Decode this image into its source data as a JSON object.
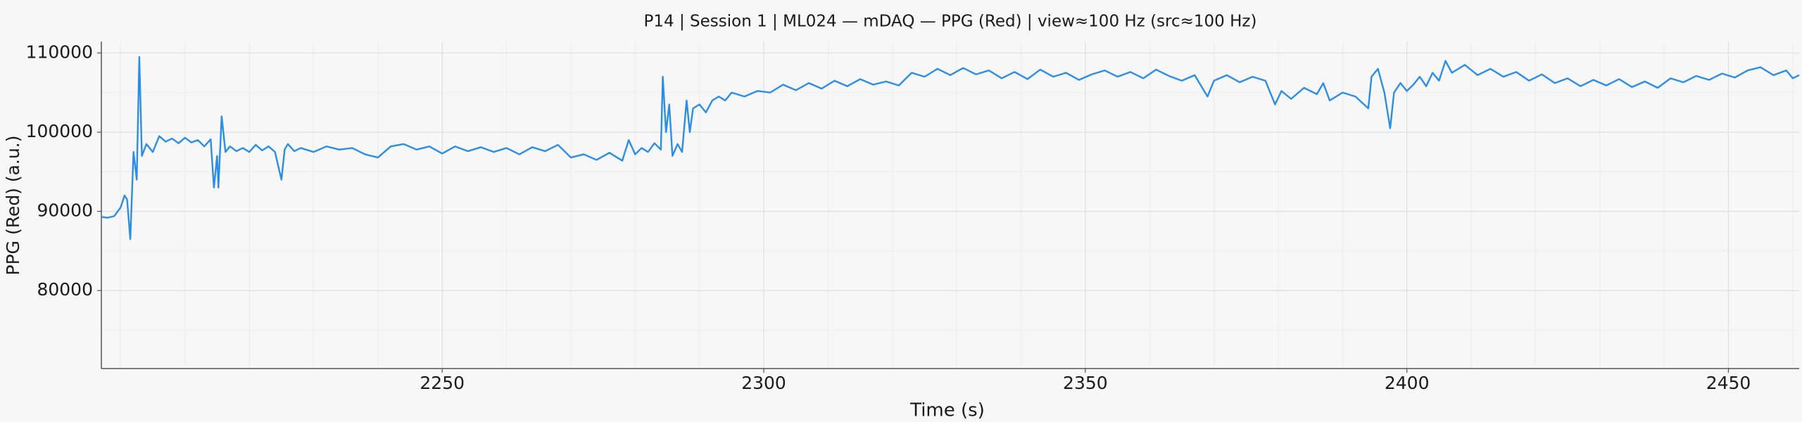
{
  "chart_data": {
    "type": "line",
    "title": "P14 | Session 1 | ML024 — mDAQ — PPG (Red) | view≈100 Hz (src≈100 Hz)",
    "x_label": "Time (s)",
    "y_label": "PPG (Red) (a.u.)",
    "x": [
      2197,
      2198,
      2199,
      2200,
      2200.6,
      2201,
      2201.5,
      2202,
      2202.5,
      2202.9,
      2203.3,
      2204,
      2205,
      2206,
      2207,
      2208,
      2209,
      2210,
      2211,
      2212,
      2213,
      2214,
      2214.5,
      2215,
      2215.2,
      2215.7,
      2216.3,
      2217,
      2218,
      2219,
      2220,
      2221,
      2222,
      2223,
      2224,
      2225,
      2225.5,
      2226,
      2227,
      2228,
      2230,
      2232,
      2234,
      2236,
      2238,
      2240,
      2242,
      2244,
      2246,
      2248,
      2250,
      2252,
      2254,
      2256,
      2258,
      2260,
      2262,
      2264,
      2266,
      2268,
      2270,
      2272,
      2274,
      2276,
      2278,
      2279,
      2280,
      2281,
      2282,
      2283,
      2284,
      2284.3,
      2284.8,
      2285.3,
      2285.8,
      2286.6,
      2287.3,
      2288,
      2288.5,
      2289,
      2290,
      2291,
      2292,
      2293,
      2294,
      2295,
      2297,
      2299,
      2301,
      2303,
      2305,
      2307,
      2309,
      2311,
      2313,
      2315,
      2317,
      2319,
      2321,
      2323,
      2325,
      2327,
      2329,
      2331,
      2333,
      2335,
      2337,
      2339,
      2341,
      2343,
      2345,
      2347,
      2349,
      2351,
      2353,
      2355,
      2357,
      2359,
      2361,
      2363,
      2365,
      2367,
      2369,
      2370,
      2372,
      2374,
      2376,
      2378,
      2379.5,
      2380.5,
      2382,
      2384,
      2386,
      2387,
      2388,
      2390,
      2392,
      2394,
      2394.5,
      2395.5,
      2396.5,
      2397.4,
      2398,
      2399,
      2400,
      2401,
      2402,
      2403,
      2404,
      2405,
      2406,
      2407,
      2409,
      2411,
      2413,
      2415,
      2417,
      2419,
      2421,
      2423,
      2425,
      2427,
      2429,
      2431,
      2433,
      2435,
      2437,
      2439,
      2441,
      2443,
      2445,
      2447,
      2449,
      2451,
      2453,
      2455,
      2457,
      2459,
      2460,
      2461
    ],
    "series": [
      {
        "name": "PPG (Red)",
        "color": "#2a8ee8",
        "values": [
          89300,
          89200,
          89400,
          90500,
          92000,
          91500,
          86500,
          97500,
          94000,
          109500,
          97000,
          98500,
          97500,
          99500,
          98800,
          99200,
          98600,
          99300,
          98700,
          99000,
          98200,
          99100,
          93000,
          97000,
          93000,
          102000,
          97500,
          98200,
          97600,
          98000,
          97500,
          98400,
          97700,
          98200,
          97500,
          94000,
          97800,
          98500,
          97600,
          98000,
          97500,
          98200,
          97800,
          98000,
          97200,
          96800,
          98200,
          98500,
          97800,
          98200,
          97300,
          98200,
          97600,
          98100,
          97500,
          98000,
          97200,
          98100,
          97600,
          98400,
          96800,
          97200,
          96500,
          97400,
          96400,
          99000,
          97200,
          98000,
          97500,
          98600,
          97800,
          107000,
          100000,
          103500,
          97000,
          98500,
          97500,
          104000,
          100000,
          103000,
          103500,
          102500,
          104000,
          104500,
          104000,
          105000,
          104500,
          105200,
          105000,
          106000,
          105300,
          106200,
          105500,
          106500,
          105800,
          106700,
          106000,
          106400,
          105900,
          107500,
          107000,
          108000,
          107200,
          108100,
          107300,
          107800,
          106800,
          107600,
          106700,
          107900,
          107000,
          107500,
          106600,
          107300,
          107800,
          107000,
          107600,
          106800,
          107900,
          107100,
          106500,
          107200,
          104500,
          106500,
          107200,
          106300,
          107000,
          106500,
          103500,
          105200,
          104200,
          105600,
          104800,
          106200,
          104000,
          105000,
          104500,
          103000,
          107000,
          108000,
          105000,
          100500,
          105000,
          106200,
          105200,
          106000,
          107000,
          105800,
          107500,
          106500,
          109000,
          107500,
          108500,
          107200,
          108000,
          107000,
          107600,
          106500,
          107300,
          106200,
          106800,
          105800,
          106600,
          105900,
          106700,
          105700,
          106400,
          105600,
          106800,
          106300,
          107100,
          106600,
          107400,
          106900,
          107800,
          108200,
          107200,
          107800,
          106800,
          107200
        ]
      }
    ],
    "xlim": [
      2197,
      2461
    ],
    "ylim": [
      70150,
      111450
    ],
    "xticks": [
      2250,
      2300,
      2350,
      2400,
      2450
    ],
    "yticks": [
      80000,
      90000,
      100000,
      110000
    ],
    "xminorticks": [
      2200,
      2210,
      2220,
      2230,
      2240,
      2260,
      2270,
      2280,
      2290,
      2310,
      2320,
      2330,
      2340,
      2360,
      2370,
      2380,
      2390,
      2410,
      2420,
      2430,
      2440,
      2460
    ],
    "yminorticks": [
      75000,
      85000,
      95000,
      105000
    ],
    "grid": true
  }
}
